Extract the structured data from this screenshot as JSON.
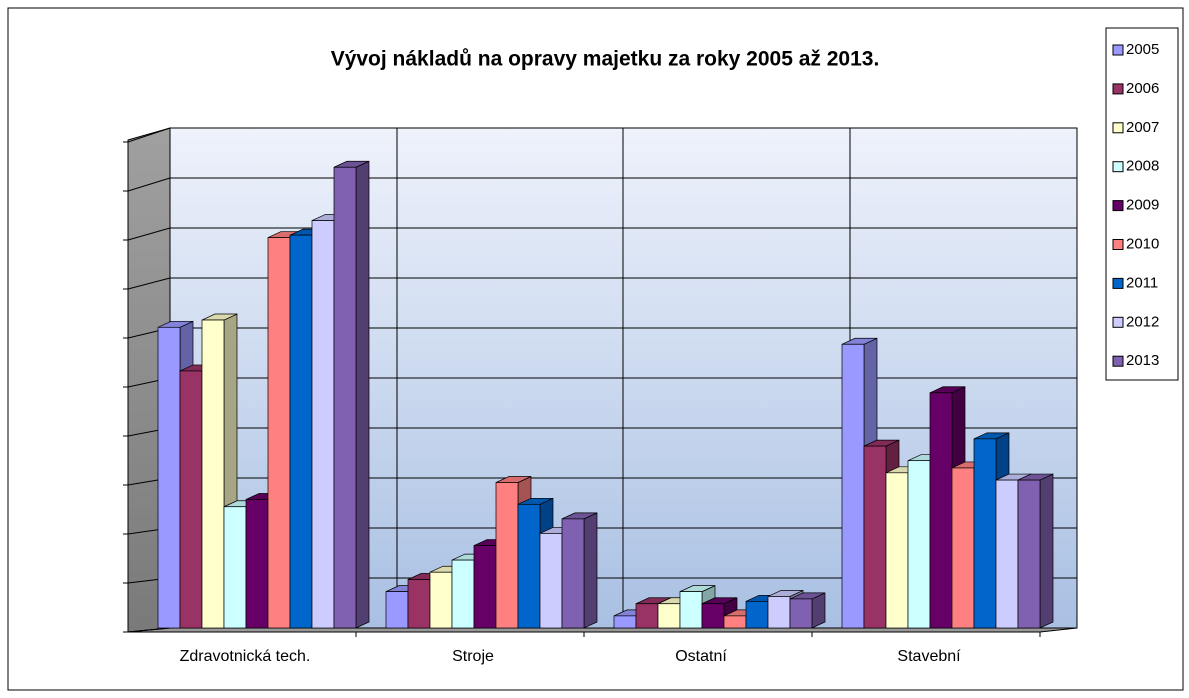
{
  "chart_data": {
    "type": "bar3d",
    "title": "Vývoj nákladů na opravy majetku za roky 2005 až 2013.",
    "categories": [
      "Zdravotnická tech.",
      "Stroje",
      "Ostatní",
      "Stavební"
    ],
    "series": [
      {
        "name": "2005",
        "color": "#9999ff",
        "values": [
          6.2,
          0.75,
          0.25,
          5.85
        ]
      },
      {
        "name": "2006",
        "color": "#993366",
        "values": [
          5.3,
          1.0,
          0.5,
          3.75
        ]
      },
      {
        "name": "2007",
        "color": "#ffffcc",
        "values": [
          6.35,
          1.15,
          0.5,
          3.2
        ]
      },
      {
        "name": "2008",
        "color": "#ccffff",
        "values": [
          2.5,
          1.4,
          0.75,
          3.45
        ]
      },
      {
        "name": "2009",
        "color": "#660066",
        "values": [
          2.65,
          1.7,
          0.5,
          4.85
        ]
      },
      {
        "name": "2010",
        "color": "#ff8080",
        "values": [
          8.05,
          3.0,
          0.25,
          3.3
        ]
      },
      {
        "name": "2011",
        "color": "#0066cc",
        "values": [
          8.1,
          2.55,
          0.55,
          3.9
        ]
      },
      {
        "name": "2012",
        "color": "#ccccff",
        "values": [
          8.4,
          1.95,
          0.65,
          3.05
        ]
      },
      {
        "name": "2013",
        "color": "#8060b0",
        "values": [
          9.5,
          2.25,
          0.6,
          3.05
        ]
      }
    ],
    "ylim": [
      0,
      10
    ],
    "yticks": [
      0,
      1,
      2,
      3,
      4,
      5,
      6,
      7,
      8,
      9,
      10
    ],
    "grid": true,
    "legend": "right"
  }
}
